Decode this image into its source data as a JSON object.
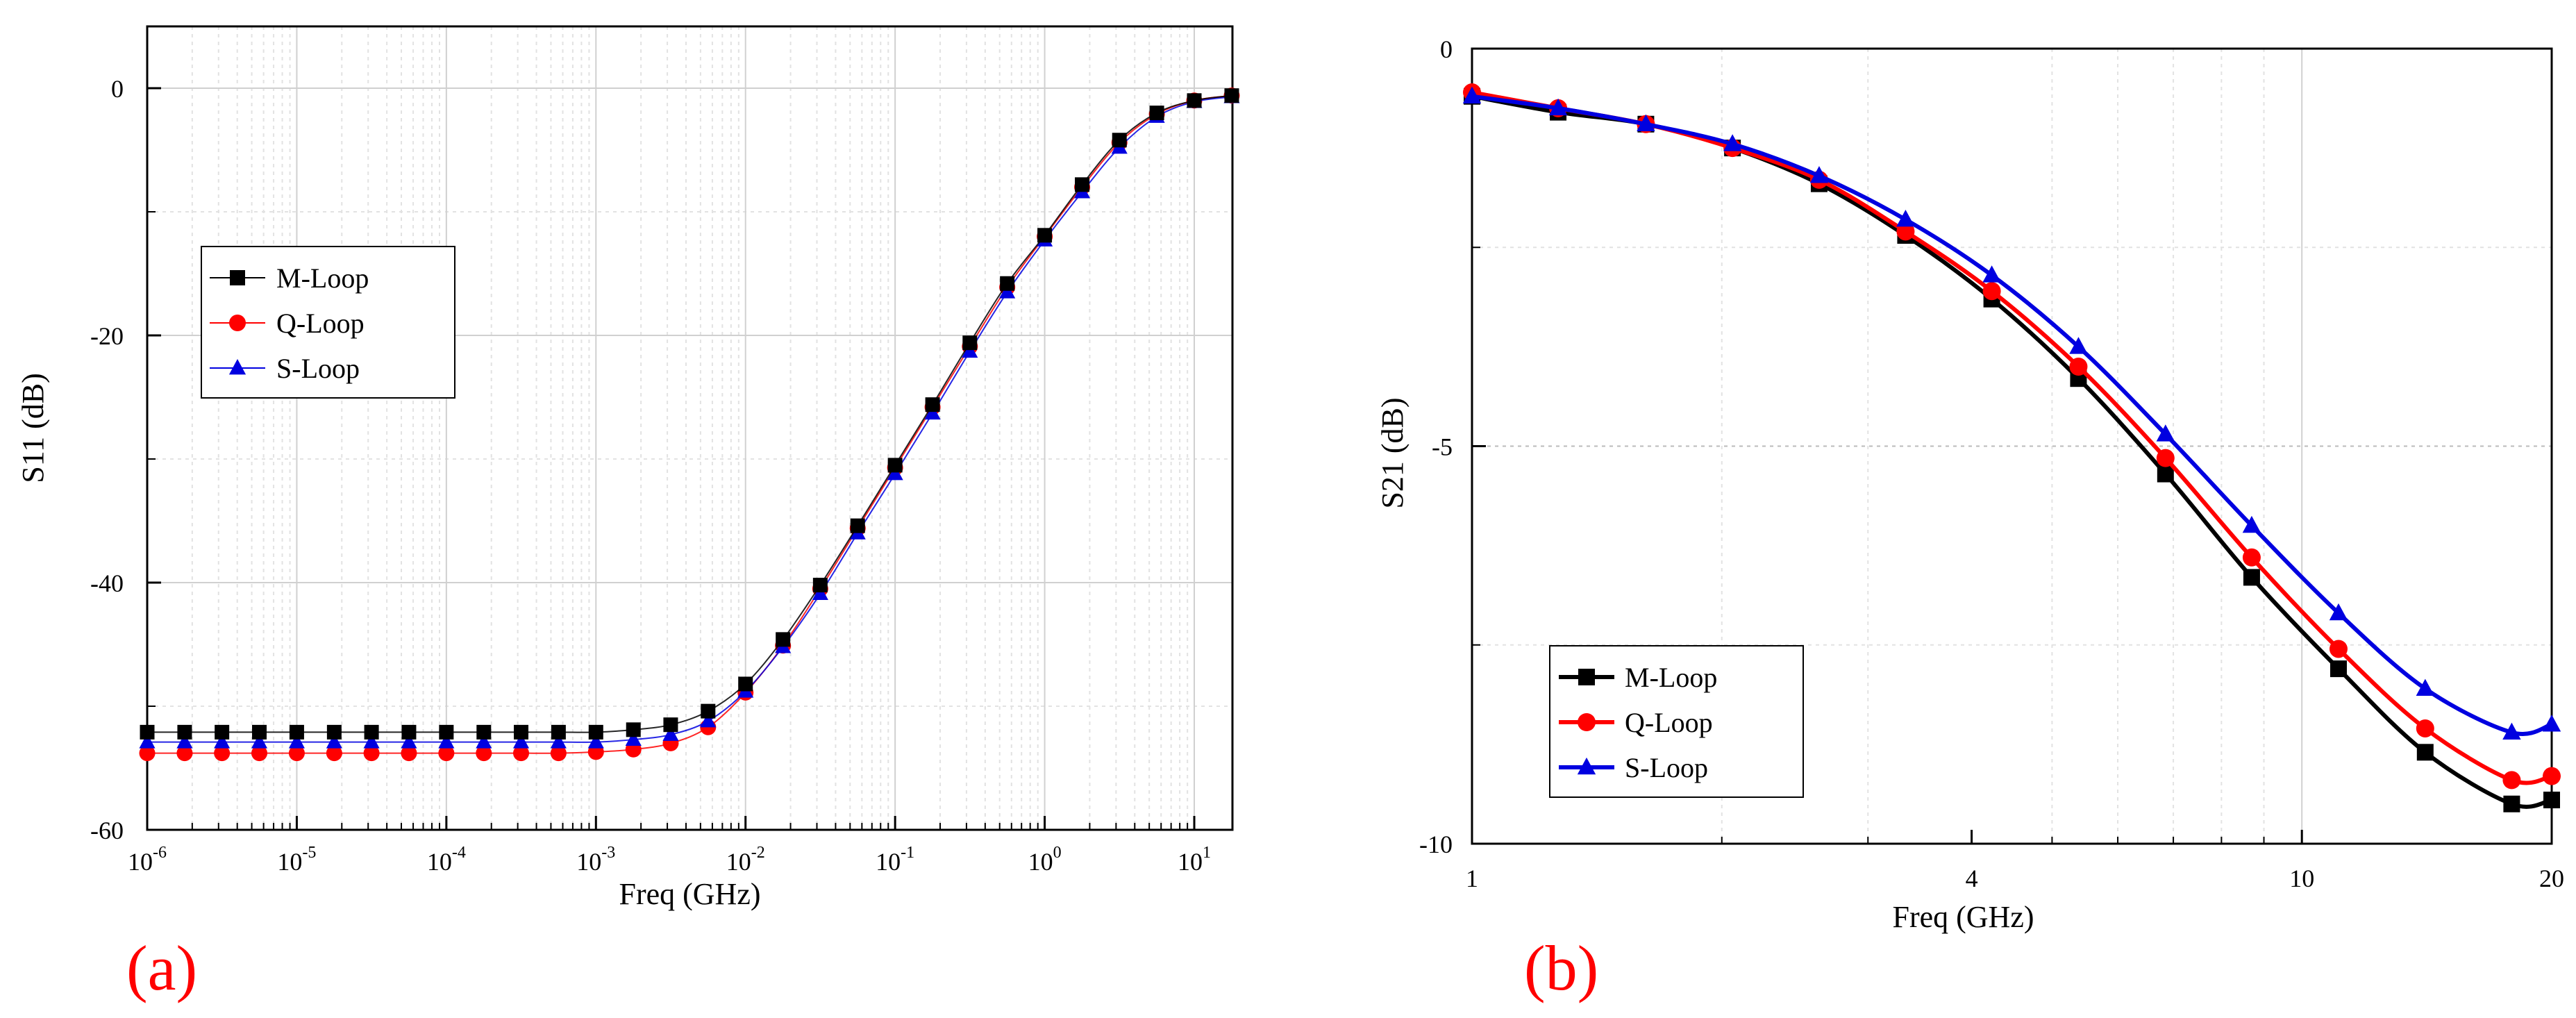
{
  "colors": {
    "m": "#000000",
    "q": "#ff0000",
    "s": "#0000e0",
    "panel": "#ff0000"
  },
  "chart_data": [
    {
      "id": "a",
      "type": "line",
      "panel_label": "(a)",
      "xlabel": "Freq (GHz)",
      "ylabel": "S11 (dB)",
      "xscale": "log",
      "xlim": [
        1e-06,
        18
      ],
      "ylim": [
        -60,
        5
      ],
      "yticks": [
        0,
        -20,
        -40,
        -60
      ],
      "ytick_labels": [
        "0",
        "-20",
        "-40",
        "-60"
      ],
      "xticks": [
        {
          "base": "10",
          "exp": "-6"
        },
        {
          "base": "10",
          "exp": "-5"
        },
        {
          "base": "10",
          "exp": "-4"
        },
        {
          "base": "10",
          "exp": "-3"
        },
        {
          "base": "10",
          "exp": "-2"
        },
        {
          "base": "10",
          "exp": "-1"
        },
        {
          "base": "10",
          "exp": "0"
        },
        {
          "base": "10",
          "exp": "1"
        }
      ],
      "legend": [
        "M-Loop",
        "Q-Loop",
        "S-Loop"
      ],
      "legend_position": "center-left",
      "x": [
        1e-06,
        1.78e-06,
        3.16e-06,
        5.62e-06,
        1e-05,
        1.78e-05,
        3.16e-05,
        5.62e-05,
        0.0001,
        0.000178,
        0.000316,
        0.000562,
        0.001,
        0.00178,
        0.00316,
        0.00562,
        0.01,
        0.0178,
        0.0316,
        0.0562,
        0.1,
        0.178,
        0.316,
        0.562,
        1,
        1.78,
        3.16,
        5.62,
        10,
        17.8
      ],
      "series": [
        {
          "name": "M-Loop",
          "marker": "square",
          "values": [
            -52.1,
            -52.1,
            -52.1,
            -52.1,
            -52.1,
            -52.1,
            -52.1,
            -52.1,
            -52.1,
            -52.1,
            -52.1,
            -52.1,
            -52.1,
            -51.9,
            -51.5,
            -50.4,
            -48.2,
            -44.6,
            -40.2,
            -35.4,
            -30.5,
            -25.6,
            -20.6,
            -15.8,
            -11.9,
            -7.8,
            -4.2,
            -2.0,
            -1.0,
            -0.6
          ]
        },
        {
          "name": "Q-Loop",
          "marker": "circle",
          "values": [
            -53.8,
            -53.8,
            -53.8,
            -53.8,
            -53.8,
            -53.8,
            -53.8,
            -53.8,
            -53.8,
            -53.8,
            -53.8,
            -53.8,
            -53.7,
            -53.5,
            -53.0,
            -51.7,
            -48.9,
            -45.1,
            -40.5,
            -35.6,
            -30.7,
            -25.8,
            -20.9,
            -16.1,
            -12.0,
            -8.0,
            -4.4,
            -2.1,
            -1.0,
            -0.6
          ]
        },
        {
          "name": "S-Loop",
          "marker": "triangle",
          "values": [
            -52.9,
            -52.9,
            -52.9,
            -52.9,
            -52.9,
            -52.9,
            -52.9,
            -52.9,
            -52.9,
            -52.9,
            -52.9,
            -52.9,
            -52.9,
            -52.7,
            -52.3,
            -51.2,
            -48.8,
            -45.2,
            -40.9,
            -36.0,
            -31.2,
            -26.3,
            -21.3,
            -16.5,
            -12.3,
            -8.4,
            -4.8,
            -2.3,
            -1.1,
            -0.7
          ]
        }
      ]
    },
    {
      "id": "b",
      "type": "line",
      "panel_label": "(b)",
      "xlabel": "Freq (GHz)",
      "ylabel": "S21 (dB)",
      "xscale": "log",
      "xlim": [
        1,
        20
      ],
      "ylim": [
        -10,
        0
      ],
      "yticks": [
        0,
        -5,
        -10
      ],
      "ytick_labels": [
        "0",
        "-5",
        "-10"
      ],
      "xticks": [
        {
          "value": 1,
          "label": "1"
        },
        {
          "value": 4,
          "label": "4"
        },
        {
          "value": 10,
          "label": "10"
        },
        {
          "value": 20,
          "label": "20"
        }
      ],
      "legend": [
        "M-Loop",
        "Q-Loop",
        "S-Loop"
      ],
      "legend_position": "bottom-left",
      "x": [
        1,
        1.27,
        1.62,
        2.06,
        2.62,
        3.33,
        4.23,
        5.38,
        6.85,
        8.7,
        11.07,
        14.08,
        17.9,
        20
      ],
      "series": [
        {
          "name": "M-Loop",
          "marker": "square",
          "values": [
            -0.6,
            -0.8,
            -0.95,
            -1.25,
            -1.7,
            -2.35,
            -3.15,
            -4.15,
            -5.35,
            -6.65,
            -7.8,
            -8.85,
            -9.5,
            -9.45
          ]
        },
        {
          "name": "Q-Loop",
          "marker": "circle",
          "values": [
            -0.55,
            -0.75,
            -0.95,
            -1.25,
            -1.65,
            -2.3,
            -3.05,
            -4.0,
            -5.15,
            -6.4,
            -7.55,
            -8.55,
            -9.2,
            -9.15
          ]
        },
        {
          "name": "S-Loop",
          "marker": "triangle",
          "values": [
            -0.6,
            -0.75,
            -0.95,
            -1.2,
            -1.6,
            -2.15,
            -2.85,
            -3.75,
            -4.85,
            -6.0,
            -7.1,
            -8.05,
            -8.6,
            -8.5
          ]
        }
      ]
    }
  ]
}
